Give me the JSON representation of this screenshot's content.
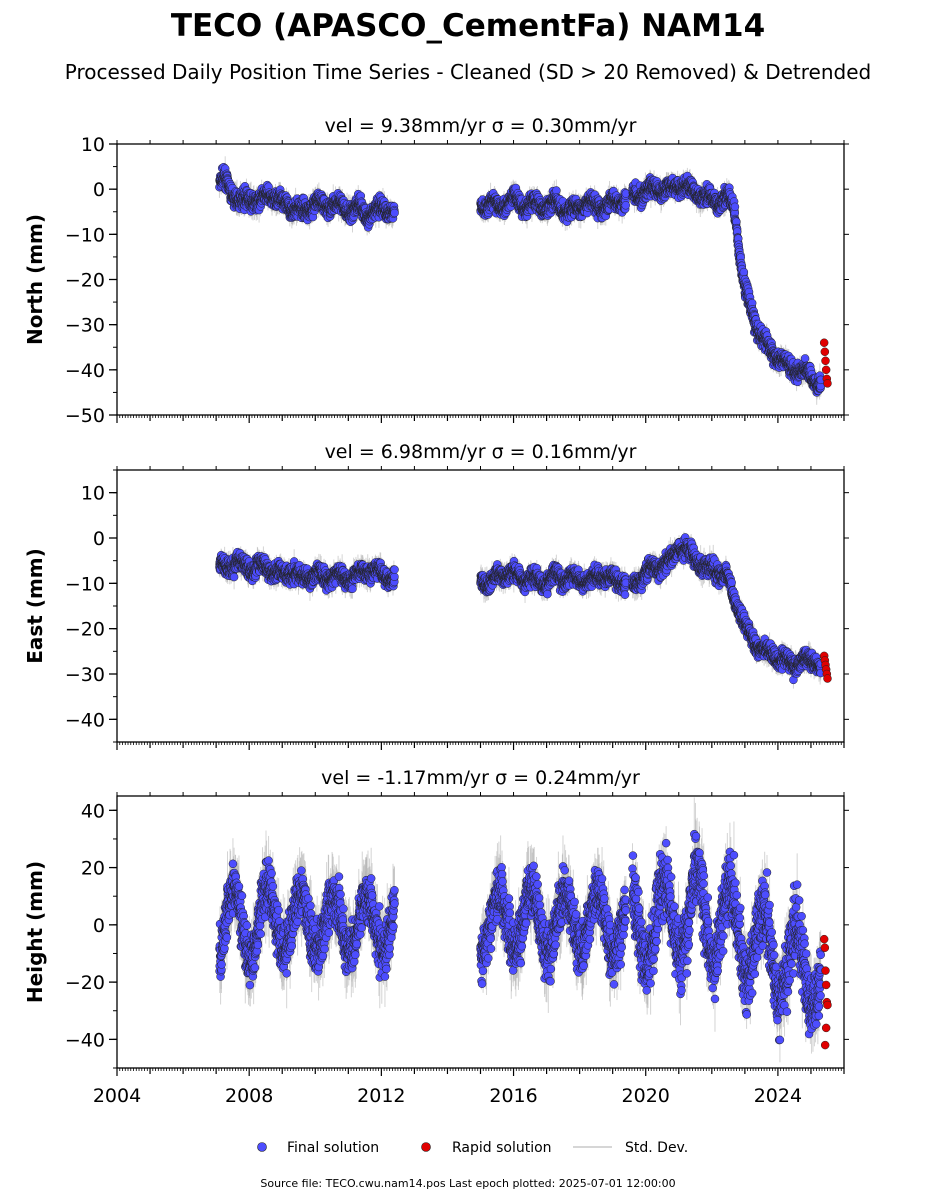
{
  "title": "TECO (APASCO_CementFa) NAM14",
  "subtitle": "Processed Daily Position Time Series - Cleaned (SD > 20 Removed) & Detrended",
  "legend": {
    "final": "Final solution",
    "rapid": "Rapid solution",
    "std": "Std. Dev."
  },
  "footer": "Source file: TECO.cwu.nam14.pos  Last epoch plotted: 2025-07-01 12:00:00",
  "colors": {
    "final": "#4d4dff",
    "rapid": "#e00000",
    "std": "#b0b0b0",
    "edge": "#222222"
  },
  "chart_data": [
    {
      "type": "scatter",
      "panel": "north",
      "title": "vel = 9.38mm/yr   σ = 0.30mm/yr",
      "ylabel": "North (mm)",
      "xlim": [
        2004.0,
        2026.0
      ],
      "ylim": [
        -50,
        10
      ],
      "yticks": [
        10,
        0,
        -10,
        -20,
        -30,
        -40,
        -50
      ],
      "ytick_labels": [
        "10",
        "0",
        "−10",
        "−20",
        "−30",
        "−40",
        "−50"
      ],
      "series": [
        {
          "name": "Final solution",
          "segments": [
            {
              "x": [
                2007.1,
                2007.3,
                2007.5,
                2007.7,
                2008.0,
                2008.3,
                2008.6,
                2009.0,
                2009.3,
                2009.6,
                2010.0,
                2010.3,
                2010.6,
                2011.0,
                2011.3,
                2011.6,
                2012.0,
                2012.4
              ],
              "y": [
                1,
                2,
                -1,
                -3,
                -2,
                -3,
                -1,
                -3,
                -4,
                -5,
                -3,
                -4,
                -3,
                -5,
                -4,
                -6,
                -4,
                -5
              ]
            },
            {
              "x": [
                2015.0,
                2015.3,
                2015.6,
                2016.0,
                2016.3,
                2016.6,
                2017.0,
                2017.3,
                2017.6,
                2018.0,
                2018.3,
                2018.6,
                2019.0,
                2019.4
              ],
              "y": [
                -4,
                -3,
                -4,
                -2,
                -4,
                -3,
                -4,
                -3,
                -5,
                -4,
                -3,
                -4,
                -3,
                -2
              ]
            },
            {
              "x": [
                2019.6,
                2019.9,
                2020.2,
                2020.5,
                2020.8,
                2021.0,
                2021.3,
                2021.6,
                2021.9,
                2022.2,
                2022.5,
                2022.7,
                2022.8,
                2022.9,
                2023.0,
                2023.2,
                2023.4,
                2023.6,
                2023.8,
                2024.0,
                2024.3,
                2024.6,
                2024.9,
                2025.1,
                2025.3
              ],
              "y": [
                -1,
                -1,
                0,
                0,
                0,
                1,
                0,
                -1,
                -2,
                -3,
                -2,
                -5,
                -11,
                -18,
                -22,
                -27,
                -31,
                -34,
                -36,
                -37,
                -39,
                -40,
                -41,
                -42,
                -43
              ]
            }
          ]
        },
        {
          "name": "Rapid solution",
          "x": [
            2025.4,
            2025.42,
            2025.44,
            2025.46,
            2025.48,
            2025.5
          ],
          "y": [
            -34,
            -36,
            -38,
            -40,
            -42,
            -43
          ]
        }
      ]
    },
    {
      "type": "scatter",
      "panel": "east",
      "title": "vel = 6.98mm/yr   σ = 0.16mm/yr",
      "ylabel": "East (mm)",
      "xlim": [
        2004.0,
        2026.0
      ],
      "ylim": [
        -45,
        15
      ],
      "yticks": [
        10,
        0,
        -10,
        -20,
        -30,
        -40
      ],
      "ytick_labels": [
        "10",
        "0",
        "−10",
        "−20",
        "−30",
        "−40"
      ],
      "series": [
        {
          "name": "Final solution",
          "segments": [
            {
              "x": [
                2007.1,
                2007.3,
                2007.6,
                2008.0,
                2008.3,
                2008.6,
                2009.0,
                2009.3,
                2009.6,
                2010.0,
                2010.3,
                2010.6,
                2011.0,
                2011.3,
                2011.6,
                2012.0,
                2012.4
              ],
              "y": [
                -6,
                -7,
                -5,
                -7,
                -6,
                -7,
                -8,
                -7,
                -9,
                -8,
                -9,
                -8,
                -9,
                -8,
                -7,
                -8,
                -9
              ]
            },
            {
              "x": [
                2015.0,
                2015.3,
                2015.6,
                2016.0,
                2016.3,
                2016.6,
                2017.0,
                2017.3,
                2017.6,
                2018.0,
                2018.3,
                2018.6,
                2019.0,
                2019.4
              ],
              "y": [
                -9,
                -10,
                -8,
                -8,
                -9,
                -9,
                -10,
                -8,
                -9,
                -9,
                -10,
                -8,
                -9,
                -10
              ]
            },
            {
              "x": [
                2019.6,
                2019.9,
                2020.2,
                2020.5,
                2020.8,
                2021.0,
                2021.3,
                2021.6,
                2021.9,
                2022.2,
                2022.5,
                2022.7,
                2022.9,
                2023.1,
                2023.3,
                2023.6,
                2023.9,
                2024.2,
                2024.5,
                2024.8,
                2025.1,
                2025.3
              ],
              "y": [
                -11,
                -8,
                -7,
                -6,
                -5,
                -2,
                -3,
                -5,
                -7,
                -7,
                -9,
                -14,
                -17,
                -21,
                -23,
                -25,
                -26,
                -27,
                -28,
                -27,
                -27,
                -28
              ]
            }
          ]
        },
        {
          "name": "Rapid solution",
          "x": [
            2025.4,
            2025.42,
            2025.44,
            2025.46,
            2025.48,
            2025.5
          ],
          "y": [
            -26,
            -27,
            -28,
            -29,
            -30,
            -31
          ]
        }
      ]
    },
    {
      "type": "scatter",
      "panel": "height",
      "title": "vel = -1.17mm/yr   σ = 0.24mm/yr",
      "ylabel": "Height (mm)",
      "xlim": [
        2004.0,
        2026.0
      ],
      "ylim": [
        -50,
        45
      ],
      "yticks": [
        40,
        20,
        0,
        -20,
        -40
      ],
      "ytick_labels": [
        "40",
        "20",
        "0",
        "−20",
        "−40"
      ],
      "xticks": [
        2004,
        2008,
        2012,
        2016,
        2020,
        2024
      ],
      "series": [
        {
          "name": "Final solution",
          "amplitude": [
            12,
            12,
            16
          ],
          "segments": [
            {
              "x": [
                2007.1,
                2007.5,
                2008.0,
                2008.5,
                2009.0,
                2009.5,
                2010.0,
                2010.5,
                2011.0,
                2011.5,
                2012.0,
                2012.4
              ],
              "y": [
                0,
                2,
                -2,
                3,
                1,
                0,
                2,
                -1,
                1,
                0,
                2,
                1
              ]
            },
            {
              "x": [
                2015.0,
                2015.5,
                2016.0,
                2016.5,
                2017.0,
                2017.5,
                2018.0,
                2018.5,
                2019.0,
                2019.4
              ],
              "y": [
                0,
                1,
                3,
                2,
                1,
                0,
                2,
                1,
                0,
                -1
              ]
            },
            {
              "x": [
                2019.6,
                2020.0,
                2020.5,
                2021.0,
                2021.5,
                2022.0,
                2022.5,
                2023.0,
                2023.5,
                2024.0,
                2024.5,
                2025.0,
                2025.3
              ],
              "y": [
                -2,
                0,
                2,
                3,
                5,
                2,
                0,
                -4,
                -8,
                -12,
                -15,
                -15,
                -16
              ]
            }
          ]
        },
        {
          "name": "Rapid solution",
          "x": [
            2025.4,
            2025.42,
            2025.44,
            2025.46,
            2025.48,
            2025.5,
            2025.46,
            2025.43
          ],
          "y": [
            -5,
            -8,
            -16,
            -21,
            -27,
            -28,
            -36,
            -42
          ]
        }
      ]
    }
  ]
}
